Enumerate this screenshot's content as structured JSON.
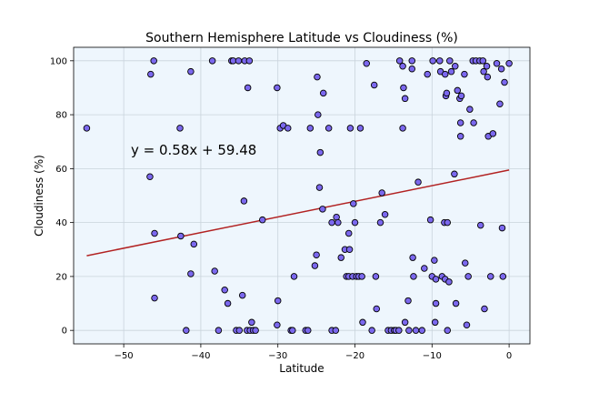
{
  "chart_data": {
    "type": "scatter",
    "title": "Southern Hemisphere Latitude vs Cloudiness (%)",
    "xlabel": "Latitude",
    "ylabel": "Cloudiness (%)",
    "xlim": [
      -56.5,
      2.7
    ],
    "ylim": [
      -5,
      105
    ],
    "x_ticks": [
      -50,
      -40,
      -30,
      -20,
      -10,
      0
    ],
    "x_tick_labels": [
      "−50",
      "−40",
      "−30",
      "−20",
      "−10",
      "0"
    ],
    "y_ticks": [
      0,
      20,
      40,
      60,
      80,
      100
    ],
    "y_tick_labels": [
      "0",
      "20",
      "40",
      "60",
      "80",
      "100"
    ],
    "grid": true,
    "plot_background": "#eef6fd",
    "marker_color": "#7b68ee",
    "marker_edge": "#000000",
    "regression": {
      "equation": "y = 0.58x + 59.48",
      "slope": 0.58,
      "intercept": 59.48,
      "x_range": [
        -54.8,
        0.0
      ],
      "color": "#b22222",
      "label_color": "#b22222"
    },
    "points": [
      [
        -54.8,
        75
      ],
      [
        -46.5,
        95
      ],
      [
        -46.1,
        100
      ],
      [
        -46.6,
        57
      ],
      [
        -46.0,
        36
      ],
      [
        -46.0,
        12
      ],
      [
        -42.7,
        75
      ],
      [
        -42.6,
        35
      ],
      [
        -41.9,
        0
      ],
      [
        -41.3,
        96
      ],
      [
        -41.3,
        21
      ],
      [
        -40.9,
        32
      ],
      [
        -38.5,
        100
      ],
      [
        -38.2,
        22
      ],
      [
        -37.7,
        0
      ],
      [
        -36.9,
        15
      ],
      [
        -36.5,
        10
      ],
      [
        -36.0,
        100
      ],
      [
        -35.8,
        100
      ],
      [
        -35.1,
        100
      ],
      [
        -34.3,
        100
      ],
      [
        -33.7,
        100
      ],
      [
        -35.4,
        0
      ],
      [
        -35.0,
        0
      ],
      [
        -34.6,
        13
      ],
      [
        -34.4,
        48
      ],
      [
        -34.0,
        0
      ],
      [
        -33.9,
        90
      ],
      [
        -33.6,
        0
      ],
      [
        -33.4,
        3
      ],
      [
        -33.2,
        0
      ],
      [
        -32.9,
        0
      ],
      [
        -32.0,
        41
      ],
      [
        -30.1,
        90
      ],
      [
        -30.1,
        2
      ],
      [
        -30.0,
        11
      ],
      [
        -29.7,
        75
      ],
      [
        -29.3,
        76
      ],
      [
        -28.7,
        75
      ],
      [
        -28.3,
        0
      ],
      [
        -28.1,
        0
      ],
      [
        -27.9,
        20
      ],
      [
        -26.4,
        0
      ],
      [
        -26.1,
        0
      ],
      [
        -25.8,
        75
      ],
      [
        -25.2,
        24
      ],
      [
        -25.0,
        28
      ],
      [
        -24.9,
        94
      ],
      [
        -24.8,
        80
      ],
      [
        -24.6,
        53
      ],
      [
        -24.5,
        66
      ],
      [
        -24.2,
        45
      ],
      [
        -24.1,
        88
      ],
      [
        -23.4,
        75
      ],
      [
        -23.0,
        0
      ],
      [
        -23.0,
        40
      ],
      [
        -22.5,
        0
      ],
      [
        -22.4,
        42
      ],
      [
        -22.2,
        40
      ],
      [
        -21.8,
        27
      ],
      [
        -21.3,
        30
      ],
      [
        -21.1,
        20
      ],
      [
        -20.8,
        36
      ],
      [
        -20.8,
        20
      ],
      [
        -20.7,
        30
      ],
      [
        -20.6,
        75
      ],
      [
        -20.3,
        20
      ],
      [
        -20.2,
        47
      ],
      [
        -20.0,
        40
      ],
      [
        -19.8,
        20
      ],
      [
        -19.5,
        20
      ],
      [
        -19.3,
        75
      ],
      [
        -19.0,
        3
      ],
      [
        -19.1,
        20
      ],
      [
        -18.5,
        99
      ],
      [
        -17.8,
        0
      ],
      [
        -17.5,
        91
      ],
      [
        -17.3,
        20
      ],
      [
        -17.2,
        8
      ],
      [
        -16.7,
        40
      ],
      [
        -16.5,
        51
      ],
      [
        -16.1,
        43
      ],
      [
        -15.7,
        0
      ],
      [
        -15.3,
        0
      ],
      [
        -14.9,
        0
      ],
      [
        -14.7,
        0
      ],
      [
        -14.3,
        0
      ],
      [
        -14.2,
        100
      ],
      [
        -13.8,
        98
      ],
      [
        -13.8,
        75
      ],
      [
        -13.7,
        90
      ],
      [
        -13.5,
        86
      ],
      [
        -13.5,
        3
      ],
      [
        -13.1,
        11
      ],
      [
        -13.0,
        0
      ],
      [
        -12.6,
        100
      ],
      [
        -12.6,
        97
      ],
      [
        -12.5,
        27
      ],
      [
        -12.4,
        20
      ],
      [
        -12.1,
        0
      ],
      [
        -11.8,
        55
      ],
      [
        -11.3,
        0
      ],
      [
        -11.0,
        23
      ],
      [
        -10.6,
        95
      ],
      [
        -10.2,
        41
      ],
      [
        -10.0,
        20
      ],
      [
        -9.9,
        100
      ],
      [
        -9.7,
        26
      ],
      [
        -9.5,
        19
      ],
      [
        -9.5,
        10
      ],
      [
        -9.6,
        3
      ],
      [
        -9.0,
        100
      ],
      [
        -8.9,
        96
      ],
      [
        -8.7,
        20
      ],
      [
        -8.4,
        40
      ],
      [
        -8.3,
        95
      ],
      [
        -8.3,
        19
      ],
      [
        -8.2,
        87
      ],
      [
        -8.1,
        88
      ],
      [
        -8.0,
        0
      ],
      [
        -8.0,
        40
      ],
      [
        -7.8,
        18
      ],
      [
        -7.7,
        100
      ],
      [
        -7.5,
        96
      ],
      [
        -7.1,
        58
      ],
      [
        -7.0,
        98
      ],
      [
        -6.9,
        10
      ],
      [
        -6.7,
        89
      ],
      [
        -6.4,
        86
      ],
      [
        -6.3,
        77
      ],
      [
        -6.3,
        72
      ],
      [
        -6.2,
        87
      ],
      [
        -5.8,
        95
      ],
      [
        -5.7,
        25
      ],
      [
        -5.5,
        2
      ],
      [
        -5.3,
        20
      ],
      [
        -5.1,
        82
      ],
      [
        -4.7,
        100
      ],
      [
        -4.6,
        77
      ],
      [
        -4.3,
        100
      ],
      [
        -3.8,
        100
      ],
      [
        -3.7,
        39
      ],
      [
        -3.4,
        100
      ],
      [
        -3.3,
        96
      ],
      [
        -3.2,
        8
      ],
      [
        -2.9,
        98
      ],
      [
        -2.8,
        94
      ],
      [
        -2.7,
        72
      ],
      [
        -2.4,
        20
      ],
      [
        -2.1,
        73
      ],
      [
        -1.6,
        99
      ],
      [
        -1.2,
        84
      ],
      [
        -1.0,
        97
      ],
      [
        -0.9,
        38
      ],
      [
        -0.8,
        20
      ],
      [
        -0.6,
        92
      ],
      [
        0.0,
        99
      ]
    ]
  }
}
